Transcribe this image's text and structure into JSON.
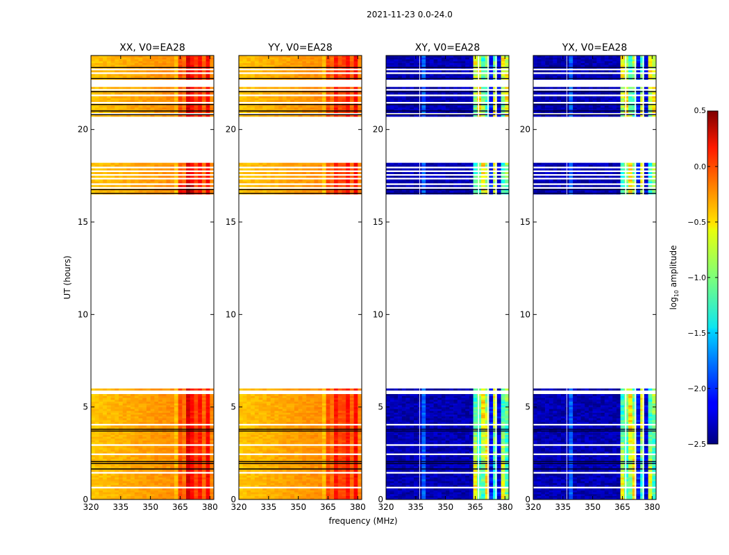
{
  "chart_data": {
    "type": "heatmap",
    "suptitle": "2021-11-23 0.0-24.0",
    "xlabel": "frequency (MHz)",
    "ylabel": "UT (hours)",
    "xlim": [
      320,
      382
    ],
    "ylim": [
      0,
      24
    ],
    "xticks": [
      320,
      335,
      350,
      365,
      380
    ],
    "yticks": [
      0,
      5,
      10,
      15,
      20
    ],
    "panels": [
      {
        "title": "XX, V0=EA28",
        "polarization": "XX",
        "reference": "EA28",
        "ylabel": "UT (hours)",
        "xlabel": ""
      },
      {
        "title": "YY, V0=EA28",
        "polarization": "YY",
        "reference": "EA28",
        "ylabel": "",
        "xlabel": "frequency (MHz)"
      },
      {
        "title": "XY, V0=EA28",
        "polarization": "XY",
        "reference": "EA28",
        "ylabel": "",
        "xlabel": ""
      },
      {
        "title": "YX, V0=EA28",
        "polarization": "YX",
        "reference": "EA28",
        "ylabel": "",
        "xlabel": ""
      }
    ],
    "data_time_ranges_hours": [
      [
        0.0,
        6.0
      ],
      [
        16.5,
        18.2
      ],
      [
        20.7,
        24.0
      ]
    ],
    "colorbar": {
      "label": "log10 amplitude",
      "label_main": "log",
      "label_sub": "10",
      "label_tail": " amplitude",
      "colormap": "jet",
      "range": [
        -2.5,
        0.5
      ],
      "ticks": [
        0.5,
        0.0,
        -0.5,
        -1.0,
        -1.5,
        -2.0,
        -2.5
      ],
      "tick_labels": [
        "0.5",
        "0.0",
        "−0.5",
        "−1.0",
        "−1.5",
        "−2.0",
        "−2.5"
      ]
    }
  }
}
